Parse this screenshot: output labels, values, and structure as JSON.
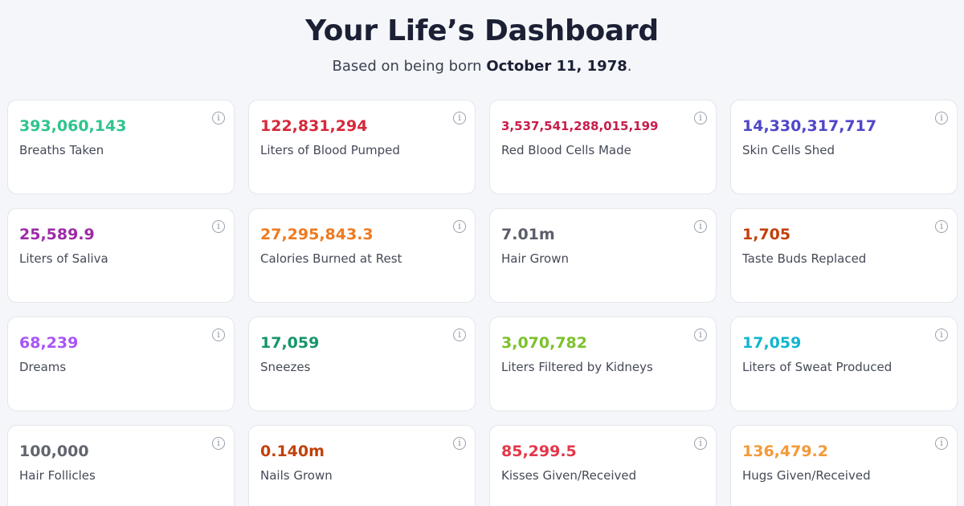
{
  "header": {
    "title": "Your Life’s Dashboard",
    "subtitle_prefix": "Based on being born ",
    "birth_date": "October 11, 1978",
    "subtitle_suffix": "."
  },
  "info_icon": {
    "name": "info-icon",
    "glyph": "i"
  },
  "cards": [
    {
      "value": "393,060,143",
      "label": "Breaths Taken",
      "color": "#2fc48d"
    },
    {
      "value": "122,831,294",
      "label": "Liters of Blood Pumped",
      "color": "#d6283a"
    },
    {
      "value": "3,537,541,288,015,199",
      "label": "Red Blood Cells Made",
      "color": "#c81d4a"
    },
    {
      "value": "14,330,317,717",
      "label": "Skin Cells Shed",
      "color": "#4f46c8"
    },
    {
      "value": "25,589.9",
      "label": "Liters of Saliva",
      "color": "#9c2aa8"
    },
    {
      "value": "27,295,843.3",
      "label": "Calories Burned at Rest",
      "color": "#ef7a1f"
    },
    {
      "value": "7.01m",
      "label": "Hair Grown",
      "color": "#5b5f6b"
    },
    {
      "value": "1,705",
      "label": "Taste Buds Replaced",
      "color": "#c2410c"
    },
    {
      "value": "68,239",
      "label": "Dreams",
      "color": "#a855f7"
    },
    {
      "value": "17,059",
      "label": "Sneezes",
      "color": "#16956b"
    },
    {
      "value": "3,070,782",
      "label": "Liters Filtered by Kidneys",
      "color": "#7cc22b"
    },
    {
      "value": "17,059",
      "label": "Liters of Sweat Produced",
      "color": "#12b5d0"
    },
    {
      "value": "100,000",
      "label": "Hair Follicles",
      "color": "#62656e"
    },
    {
      "value": "0.140m",
      "label": "Nails Grown",
      "color": "#c2410c"
    },
    {
      "value": "85,299.5",
      "label": "Kisses Given/Received",
      "color": "#e2384a"
    },
    {
      "value": "136,479.2",
      "label": "Hugs Given/Received",
      "color": "#f39a3a"
    }
  ]
}
